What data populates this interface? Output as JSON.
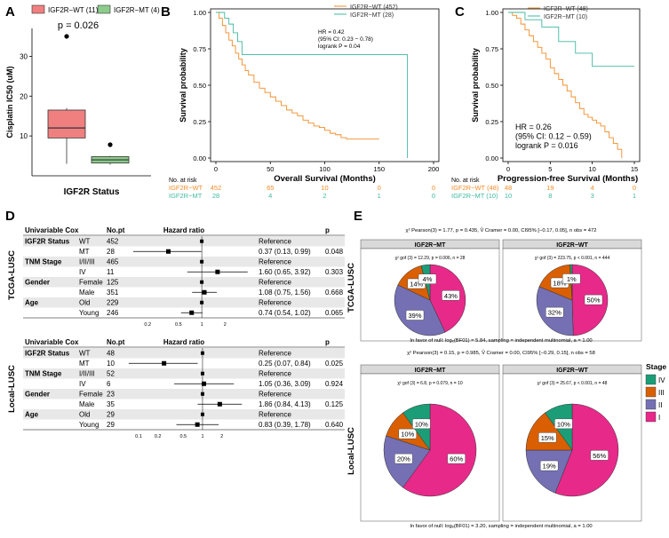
{
  "colors": {
    "wt_box": "#F08080",
    "mt_box": "#8CCB8C",
    "km_wt": "#F28C28",
    "km_mt": "#3FB8A0",
    "stage_I": "#E7298A",
    "stage_II": "#7570B3",
    "stage_III": "#D95F02",
    "stage_IV": "#1B9E77",
    "row_shade": "#E8E8E8",
    "strip_bg": "#D9D9D9"
  },
  "chart_data": [
    {
      "panel": "A",
      "type": "box",
      "legend": [
        "IGF2R−WT (11)",
        "IGF2R−MT (4)"
      ],
      "pvalue_text": "p = 0.026",
      "ylabel": "Cisplatin IC50 (uM)",
      "xlabel": "IGF2R Status",
      "ylim": [
        0,
        37
      ],
      "yticks": [
        "10",
        "20",
        "30"
      ],
      "ytick_values": [
        10,
        20,
        30
      ],
      "groups": [
        {
          "name": "WT",
          "min": 3,
          "q1": 9.5,
          "median": 12,
          "q3": 16.5,
          "max": 17,
          "outliers": [
            35
          ]
        },
        {
          "name": "MT",
          "min": 2.8,
          "q1": 3.2,
          "median": 4,
          "q3": 4.8,
          "max": 5,
          "outliers": [
            7.8
          ]
        }
      ]
    },
    {
      "panel": "B",
      "type": "line",
      "ylabel": "Survival probability",
      "xlabel": "Overall Survival (Months)",
      "xlim": [
        0,
        200
      ],
      "ylim": [
        0,
        1
      ],
      "xticks": [
        "0",
        "50",
        "100",
        "150",
        "200"
      ],
      "xtick_values": [
        0,
        50,
        100,
        150,
        200
      ],
      "yticks": [
        "0.00",
        "0.25",
        "0.50",
        "0.75",
        "1.00"
      ],
      "ytick_values": [
        0,
        0.25,
        0.5,
        0.75,
        1
      ],
      "legend": [
        "IGF2R−WT (452)",
        "IGF2R−MT (28)"
      ],
      "annotation": [
        "HR = 0.42",
        "(95% CI: 0.23 − 0.78)",
        "logrank P = 0.04"
      ],
      "risk_title": "No. at risk",
      "risk_rows": [
        {
          "label": "IGF2R−WT",
          "values": [
            "452",
            "65",
            "10",
            "0",
            "0"
          ]
        },
        {
          "label": "IGF2R−MT",
          "values": [
            "28",
            "4",
            "2",
            "1",
            "0"
          ]
        }
      ],
      "series": [
        {
          "name": "IGF2R−WT",
          "x": [
            0,
            3,
            6,
            9,
            12,
            15,
            18,
            21,
            24,
            27,
            30,
            35,
            40,
            45,
            50,
            55,
            60,
            65,
            70,
            75,
            80,
            85,
            90,
            95,
            100,
            105,
            110,
            115,
            120,
            125,
            130,
            140,
            145,
            150
          ],
          "y": [
            1,
            0.96,
            0.91,
            0.86,
            0.81,
            0.77,
            0.72,
            0.68,
            0.64,
            0.6,
            0.57,
            0.52,
            0.48,
            0.45,
            0.42,
            0.39,
            0.36,
            0.33,
            0.31,
            0.29,
            0.26,
            0.24,
            0.22,
            0.21,
            0.19,
            0.17,
            0.16,
            0.14,
            0.13,
            0.13,
            0.13,
            0.13,
            0.13,
            0.13
          ]
        },
        {
          "name": "IGF2R−MT",
          "x": [
            0,
            8,
            12,
            16,
            20,
            24,
            175,
            176
          ],
          "y": [
            1,
            0.96,
            0.92,
            0.86,
            0.8,
            0.71,
            0.71,
            0
          ]
        }
      ]
    },
    {
      "panel": "C",
      "type": "line",
      "ylabel": "Survival probability",
      "xlabel": "Progression-free Survival (Months)",
      "xlim": [
        0,
        15
      ],
      "ylim": [
        0,
        1
      ],
      "xticks": [
        "0",
        "5",
        "10",
        "15"
      ],
      "xtick_values": [
        0,
        5,
        10,
        15
      ],
      "yticks": [
        "0.00",
        "0.25",
        "0.50",
        "0.75",
        "1.00"
      ],
      "ytick_values": [
        0,
        0.25,
        0.5,
        0.75,
        1
      ],
      "legend": [
        "IGF2R−WT (48)",
        "IGF2R−MT (10)"
      ],
      "annotation": [
        "HR = 0.26",
        "(95% CI: 0.12 − 0.59)",
        "logrank P = 0.016"
      ],
      "risk_title": "No. at risk",
      "risk_rows": [
        {
          "label": "IGF2R−WT (48)",
          "values": [
            "48",
            "19",
            "4",
            "0"
          ]
        },
        {
          "label": "IGF2R−MT (10)",
          "values": [
            "10",
            "8",
            "3",
            "1"
          ]
        }
      ],
      "series": [
        {
          "name": "IGF2R−WT",
          "x": [
            0,
            0.5,
            1,
            1.5,
            2,
            2.5,
            3,
            3.5,
            4,
            4.5,
            5,
            5.5,
            6,
            6.5,
            7,
            7.5,
            8,
            8.5,
            9,
            9.5,
            10,
            10.5,
            11,
            11.5,
            12,
            12.5,
            13,
            13.5
          ],
          "y": [
            1,
            0.98,
            0.96,
            0.92,
            0.88,
            0.84,
            0.8,
            0.76,
            0.72,
            0.68,
            0.62,
            0.58,
            0.54,
            0.5,
            0.46,
            0.42,
            0.38,
            0.34,
            0.3,
            0.28,
            0.26,
            0.24,
            0.22,
            0.18,
            0.14,
            0.1,
            0.06,
            0
          ]
        },
        {
          "name": "IGF2R−MT",
          "x": [
            0,
            2,
            4,
            6,
            8,
            10,
            15
          ],
          "y": [
            1,
            0.95,
            0.9,
            0.8,
            0.72,
            0.63,
            0.63
          ]
        }
      ]
    },
    {
      "panel": "D",
      "type": "forest",
      "side_labels": [
        "TCGA-LUSC",
        "Local-LUSC"
      ],
      "tables": [
        {
          "name": "TCGA-LUSC",
          "headers": [
            "Univariable Cox",
            "No.pt",
            "Hazard ratio",
            "",
            "p"
          ],
          "xlog_ticks": [
            "0.2",
            "0.5",
            "1",
            "2"
          ],
          "xlog_values": [
            0.2,
            0.5,
            1,
            2
          ],
          "xlim": [
            0.1,
            4.5
          ],
          "rows": [
            {
              "group": "IGF2R Status",
              "level": "WT",
              "n": "452",
              "est": "Reference",
              "p": "",
              "hr": null
            },
            {
              "group": "",
              "level": "MT",
              "n": "28",
              "est": "0.37 (0.13, 0.99)",
              "p": "0.048",
              "hr": 0.37,
              "lo": 0.13,
              "hi": 0.99
            },
            {
              "group": "TNM Stage",
              "level": "I/II/III",
              "n": "465",
              "est": "Reference",
              "p": "",
              "hr": null
            },
            {
              "group": "",
              "level": "IV",
              "n": "11",
              "est": "1.60 (0.65, 3.92)",
              "p": "0.303",
              "hr": 1.6,
              "lo": 0.65,
              "hi": 3.92
            },
            {
              "group": "Gender",
              "level": "Female",
              "n": "125",
              "est": "Reference",
              "p": "",
              "hr": null
            },
            {
              "group": "",
              "level": "Male",
              "n": "351",
              "est": "1.08 (0.75, 1.56)",
              "p": "0.668",
              "hr": 1.08,
              "lo": 0.75,
              "hi": 1.56
            },
            {
              "group": "Age",
              "level": "Old",
              "n": "229",
              "est": "Reference",
              "p": "",
              "hr": null
            },
            {
              "group": "",
              "level": "Young",
              "n": "246",
              "est": "0.74 (0.54, 1.02)",
              "p": "0.065",
              "hr": 0.74,
              "lo": 0.54,
              "hi": 1.02
            }
          ]
        },
        {
          "name": "Local-LUSC",
          "headers": [
            "Univariable Cox",
            "No.pt",
            "Hazard ratio",
            "",
            "p"
          ],
          "xlog_ticks": [
            "0.1",
            "0.2",
            "0.5",
            "1",
            "2"
          ],
          "xlog_values": [
            0.1,
            0.2,
            0.5,
            1,
            2
          ],
          "xlim": [
            0.06,
            6
          ],
          "rows": [
            {
              "group": "IGF2R Status",
              "level": "WT",
              "n": "48",
              "est": "Reference",
              "p": "",
              "hr": null
            },
            {
              "group": "",
              "level": "MT",
              "n": "10",
              "est": "0.25 (0.07, 0.84)",
              "p": "0.025",
              "hr": 0.25,
              "lo": 0.07,
              "hi": 0.84
            },
            {
              "group": "TNM Stage",
              "level": "I/II/III",
              "n": "52",
              "est": "Reference",
              "p": "",
              "hr": null
            },
            {
              "group": "",
              "level": "IV",
              "n": "6",
              "est": "1.05 (0.36, 3.09)",
              "p": "0.924",
              "hr": 1.05,
              "lo": 0.36,
              "hi": 3.09
            },
            {
              "group": "Gender",
              "level": "Female",
              "n": "23",
              "est": "Reference",
              "p": "",
              "hr": null
            },
            {
              "group": "",
              "level": "Male",
              "n": "35",
              "est": "1.86 (0.84, 4.13)",
              "p": "0.125",
              "hr": 1.86,
              "lo": 0.84,
              "hi": 4.13
            },
            {
              "group": "Age",
              "level": "Old",
              "n": "29",
              "est": "Reference",
              "p": "",
              "hr": null
            },
            {
              "group": "",
              "level": "Young",
              "n": "29",
              "est": "0.83 (0.39, 1.78)",
              "p": "0.640",
              "hr": 0.83,
              "lo": 0.39,
              "hi": 1.78
            }
          ]
        }
      ]
    },
    {
      "panel": "E",
      "type": "pie",
      "legend_title": "Stage",
      "legend": [
        "IV",
        "III",
        "II",
        "I"
      ],
      "side_labels": [
        "TCGA-LUSC",
        "Local-LUSC"
      ],
      "rows": [
        {
          "name": "TCGA-LUSC",
          "top_stat": "χ² Pearson(3) = 1.77, p = 0.435, V̂ Cramer = 0.00, CI95% [−0.17, 0.05], n obs = 472",
          "bottom_stat": "In favor of null: logₑ(BF01) = 5.84, sampling = independent multinomial, a = 1.00",
          "pies": [
            {
              "title": "IGF2R−MT",
              "stat": "χ² gof (3) = 12.29, p = 0.006, n = 28",
              "slices": [
                {
                  "stage": "I",
                  "value": 43,
                  "label": "43%"
                },
                {
                  "stage": "II",
                  "value": 39,
                  "label": "39%"
                },
                {
                  "stage": "III",
                  "value": 14,
                  "label": "14%"
                },
                {
                  "stage": "IV",
                  "value": 4,
                  "label": "4%"
                }
              ]
            },
            {
              "title": "IGF2R−WT",
              "stat": "χ² gof (3) = 223.75, p < 0.001, n = 444",
              "slices": [
                {
                  "stage": "I",
                  "value": 50,
                  "label": "50%"
                },
                {
                  "stage": "II",
                  "value": 32,
                  "label": "32%"
                },
                {
                  "stage": "III",
                  "value": 18,
                  "label": "18%"
                },
                {
                  "stage": "IV",
                  "value": 1,
                  "label": "1%"
                }
              ]
            }
          ]
        },
        {
          "name": "Local-LUSC",
          "top_stat": "χ² Pearson(3) = 0.15, p = 0.985, V̂ Cramer = 0.00, CI95% [−0.29, 0.15], n obs = 58",
          "bottom_stat": "In favor of null: logₑ(BF01) = 3.20, sampling = independent multinomial, a = 1.00",
          "pies": [
            {
              "title": "IGF2R−MT",
              "stat": "χ² gof (3) = 6.8, p = 0.079, n = 10",
              "slices": [
                {
                  "stage": "I",
                  "value": 60,
                  "label": "60%"
                },
                {
                  "stage": "II",
                  "value": 20,
                  "label": "20%"
                },
                {
                  "stage": "III",
                  "value": 10,
                  "label": "10%"
                },
                {
                  "stage": "IV",
                  "value": 10,
                  "label": "10%"
                }
              ]
            },
            {
              "title": "IGF2R−WT",
              "stat": "χ² gof (3) = 25.67, p < 0.001, n = 48",
              "slices": [
                {
                  "stage": "I",
                  "value": 56,
                  "label": "56%"
                },
                {
                  "stage": "II",
                  "value": 19,
                  "label": "19%"
                },
                {
                  "stage": "III",
                  "value": 15,
                  "label": "15%"
                },
                {
                  "stage": "IV",
                  "value": 10,
                  "label": "10%"
                }
              ]
            }
          ]
        }
      ]
    }
  ],
  "panel_letters": [
    "A",
    "B",
    "C",
    "D",
    "E"
  ]
}
